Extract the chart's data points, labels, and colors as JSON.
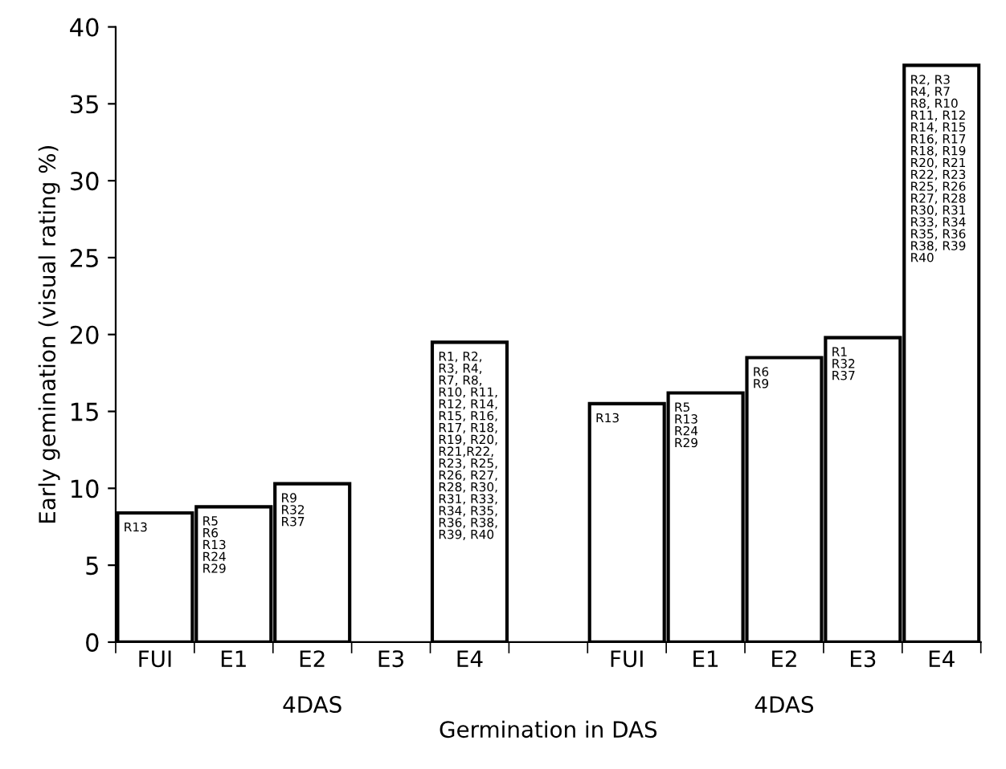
{
  "chart_data": {
    "type": "bar",
    "xlabel": "Germination in DAS",
    "ylabel": "Early gemination (visual rating %)",
    "categories": [
      "FUI",
      "E1",
      "E2",
      "E3",
      "E4",
      null,
      "FUI",
      "E1",
      "E2",
      "E3",
      "E4"
    ],
    "values": [
      8.4,
      8.8,
      10.3,
      0,
      19.5,
      null,
      15.5,
      16.2,
      18.5,
      19.8,
      37.5
    ],
    "color": "#ffffff",
    "value_labels": [
      "R13",
      "R5\nR6\nR13\nR24\nR29",
      "R9\nR32\nR37",
      null,
      "R1, R2,\nR3, R4,\nR7, R8,\nR10, R11,\nR12, R14,\nR15, R16,\nR17, R18,\nR19, R20,\nR21,R22,\nR23, R25,\nR26, R27,\nR28, R30,\nR31, R33,\nR34, R35,\nR36, R38,\nR39, R40",
      null,
      "R13",
      "R5\nR13\nR24\nR29",
      "R6\nR9",
      "R1\nR32\nR37",
      "R2, R3\nR4, R7\nR8, R10\nR11, R12\nR14, R15\nR16, R17\nR18, R19\nR20, R21\nR22, R23\nR25, R26\nR27, R28\nR30, R31\nR33, R34\nR35, R36\nR38, R39\nR40"
    ],
    "annotations": [
      "4DAS",
      "4DAS"
    ],
    "ylim": [
      0,
      40
    ],
    "yticks": [
      0,
      5,
      10,
      15,
      20,
      25,
      30,
      35,
      40
    ],
    "grid": false,
    "legend": false
  }
}
